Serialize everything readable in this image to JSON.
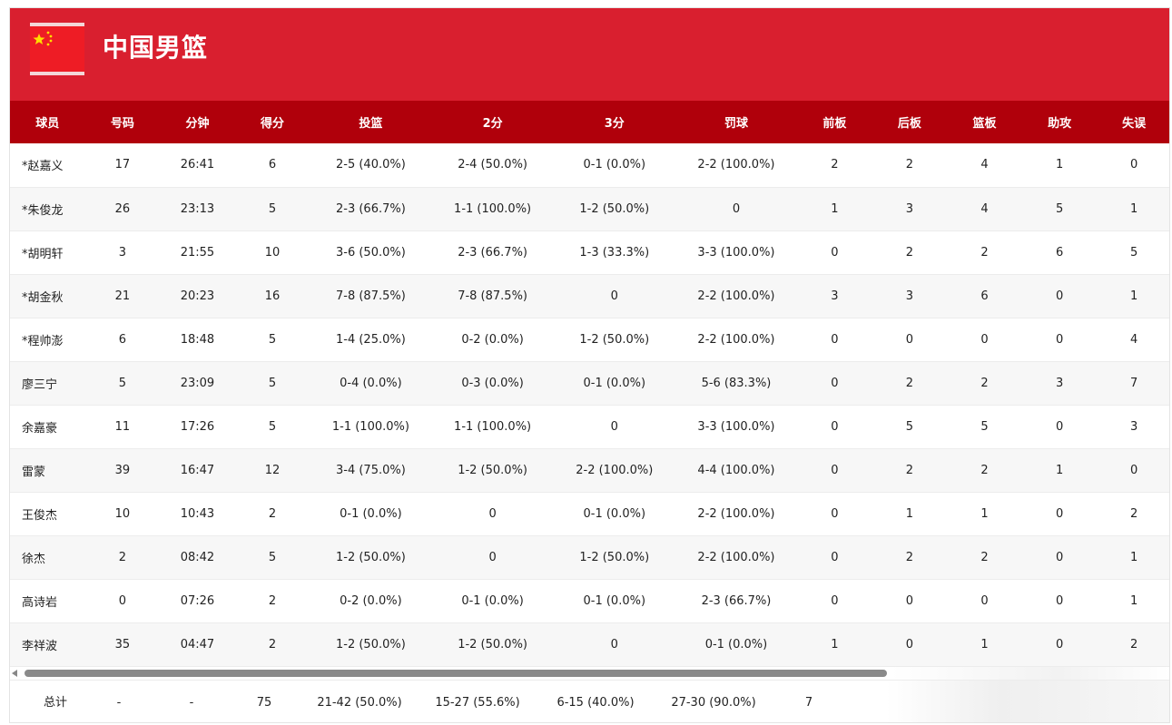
{
  "team": {
    "name": "中国男篮",
    "flag_icon": "china-flag-icon",
    "colors": {
      "banner": "#d91f2f",
      "header": "#b0000b",
      "flag_red": "#ee1c25",
      "flag_star": "#ffde00"
    }
  },
  "columns": [
    "球员",
    "号码",
    "分钟",
    "得分",
    "投篮",
    "2分",
    "3分",
    "罚球",
    "前板",
    "后板",
    "篮板",
    "助攻",
    "失误"
  ],
  "players": [
    [
      "*赵嘉义",
      "17",
      "26:41",
      "6",
      "2-5 (40.0%)",
      "2-4 (50.0%)",
      "0-1 (0.0%)",
      "2-2 (100.0%)",
      "2",
      "2",
      "4",
      "1",
      "0"
    ],
    [
      "*朱俊龙",
      "26",
      "23:13",
      "5",
      "2-3 (66.7%)",
      "1-1 (100.0%)",
      "1-2 (50.0%)",
      "0",
      "1",
      "3",
      "4",
      "5",
      "1"
    ],
    [
      "*胡明轩",
      "3",
      "21:55",
      "10",
      "3-6 (50.0%)",
      "2-3 (66.7%)",
      "1-3 (33.3%)",
      "3-3 (100.0%)",
      "0",
      "2",
      "2",
      "6",
      "5"
    ],
    [
      "*胡金秋",
      "21",
      "20:23",
      "16",
      "7-8 (87.5%)",
      "7-8 (87.5%)",
      "0",
      "2-2 (100.0%)",
      "3",
      "3",
      "6",
      "0",
      "1"
    ],
    [
      "*程帅澎",
      "6",
      "18:48",
      "5",
      "1-4 (25.0%)",
      "0-2 (0.0%)",
      "1-2 (50.0%)",
      "2-2 (100.0%)",
      "0",
      "0",
      "0",
      "0",
      "4"
    ],
    [
      "廖三宁",
      "5",
      "23:09",
      "5",
      "0-4 (0.0%)",
      "0-3 (0.0%)",
      "0-1 (0.0%)",
      "5-6 (83.3%)",
      "0",
      "2",
      "2",
      "3",
      "7"
    ],
    [
      "余嘉豪",
      "11",
      "17:26",
      "5",
      "1-1 (100.0%)",
      "1-1 (100.0%)",
      "0",
      "3-3 (100.0%)",
      "0",
      "5",
      "5",
      "0",
      "3"
    ],
    [
      "雷蒙",
      "39",
      "16:47",
      "12",
      "3-4 (75.0%)",
      "1-2 (50.0%)",
      "2-2 (100.0%)",
      "4-4 (100.0%)",
      "0",
      "2",
      "2",
      "1",
      "0"
    ],
    [
      "王俊杰",
      "10",
      "10:43",
      "2",
      "0-1 (0.0%)",
      "0",
      "0-1 (0.0%)",
      "2-2 (100.0%)",
      "0",
      "1",
      "1",
      "0",
      "2"
    ],
    [
      "徐杰",
      "2",
      "08:42",
      "5",
      "1-2 (50.0%)",
      "0",
      "1-2 (50.0%)",
      "2-2 (100.0%)",
      "0",
      "2",
      "2",
      "0",
      "1"
    ],
    [
      "高诗岩",
      "0",
      "07:26",
      "2",
      "0-2 (0.0%)",
      "0-1 (0.0%)",
      "0-1 (0.0%)",
      "2-3 (66.7%)",
      "0",
      "0",
      "0",
      "0",
      "1"
    ],
    [
      "李祥波",
      "35",
      "04:47",
      "2",
      "1-2 (50.0%)",
      "1-2 (50.0%)",
      "0",
      "0-1 (0.0%)",
      "1",
      "0",
      "1",
      "0",
      "2"
    ]
  ],
  "totals": [
    "总计",
    "-",
    "-",
    "75",
    "21-42 (50.0%)",
    "15-27 (55.6%)",
    "6-15 (40.0%)",
    "27-30 (90.0%)",
    "7"
  ]
}
